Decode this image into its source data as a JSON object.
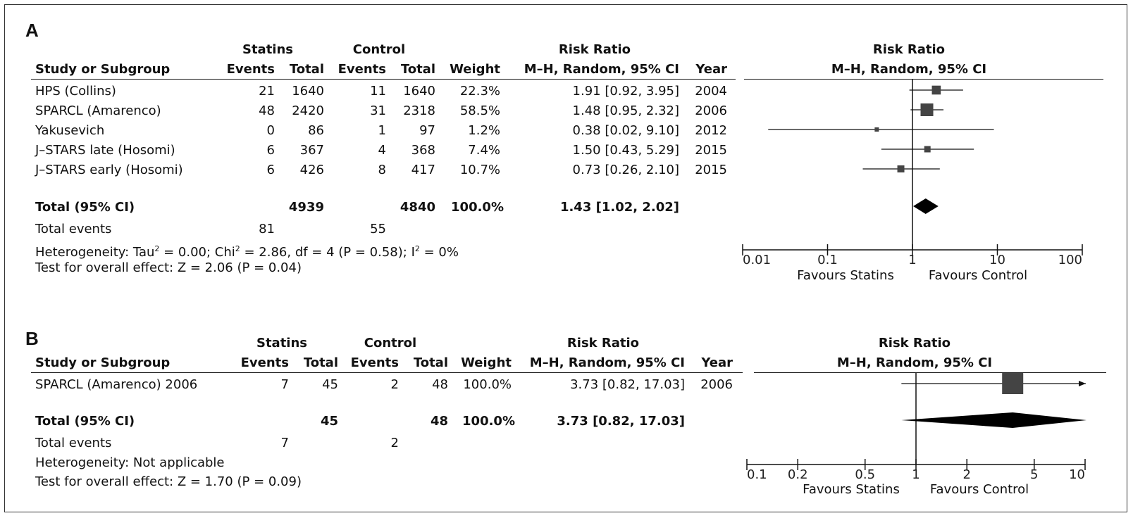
{
  "panels": [
    {
      "letter": "A",
      "head": {
        "group1": "Statins",
        "group2": "Control",
        "rr": "Risk Ratio",
        "plot_title": "Risk Ratio",
        "study": "Study or Subgroup",
        "events": "Events",
        "total": "Total",
        "weight": "Weight",
        "method": "M–H, Random, 95% CI",
        "year": "Year",
        "plot_method": "M–H, Random, 95% CI"
      },
      "rows": [
        {
          "study": "HPS (Collins)",
          "e1": "21",
          "t1": "1640",
          "e2": "11",
          "t2": "1640",
          "weight": "22.3%",
          "ci": "1.91 [0.92, 3.95]",
          "year": "2004"
        },
        {
          "study": "SPARCL (Amarenco)",
          "e1": "48",
          "t1": "2420",
          "e2": "31",
          "t2": "2318",
          "weight": "58.5%",
          "ci": "1.48 [0.95, 2.32]",
          "year": "2006"
        },
        {
          "study": "Yakusevich",
          "e1": "0",
          "t1": "86",
          "e2": "1",
          "t2": "97",
          "weight": "1.2%",
          "ci": "0.38 [0.02, 9.10]",
          "year": "2012"
        },
        {
          "study": "J–STARS late (Hosomi)",
          "e1": "6",
          "t1": "367",
          "e2": "4",
          "t2": "368",
          "weight": "7.4%",
          "ci": "1.50 [0.43, 5.29]",
          "year": "2015"
        },
        {
          "study": "J–STARS early (Hosomi)",
          "e1": "6",
          "t1": "426",
          "e2": "8",
          "t2": "417",
          "weight": "10.7%",
          "ci": "0.73 [0.26, 2.10]",
          "year": "2015"
        }
      ],
      "total": {
        "label": "Total (95% CI)",
        "t1": "4939",
        "t2": "4840",
        "weight": "100.0%",
        "ci": "1.43 [1.02, 2.02]"
      },
      "events": {
        "label": "Total events",
        "e1": "81",
        "e2": "55"
      },
      "heterogeneity_a": "Heterogeneity: Tau",
      "heterogeneity_b": " = 0.00; Chi",
      "heterogeneity_c": " = 2.86, df = 4 (P = 0.58); I",
      "heterogeneity_d": " = 0%",
      "sup": "2",
      "overall": "Test for overall effect: Z = 2.06 (P = 0.04)",
      "axis_ticks": [
        "0.01",
        "0.1",
        "1",
        "10",
        "100"
      ],
      "favours_left": "Favours Statins",
      "favours_right": "Favours Control"
    },
    {
      "letter": "B",
      "head": {
        "group1": "Statins",
        "group2": "Control",
        "rr": "Risk Ratio",
        "plot_title": "Risk Ratio",
        "study": "Study or Subgroup",
        "events": "Events",
        "total": "Total",
        "weight": "Weight",
        "method": "M–H, Random, 95% CI",
        "year": "Year",
        "plot_method": "M–H, Random, 95% CI"
      },
      "rows": [
        {
          "study": "SPARCL (Amarenco) 2006",
          "e1": "7",
          "t1": "45",
          "e2": "2",
          "t2": "48",
          "weight": "100.0%",
          "ci": "3.73 [0.82, 17.03]",
          "year": "2006"
        }
      ],
      "total": {
        "label": "Total (95% CI)",
        "t1": "45",
        "t2": "48",
        "weight": "100.0%",
        "ci": "3.73 [0.82, 17.03]"
      },
      "events": {
        "label": "Total events",
        "e1": "7",
        "e2": "2"
      },
      "heterogeneity": "Heterogeneity: Not applicable",
      "overall": "Test for overall effect: Z = 1.70 (P = 0.09)",
      "axis_ticks": [
        "0.1",
        "0.2",
        "0.5",
        "1",
        "2",
        "5",
        "10"
      ],
      "favours_left": "Favours Statins",
      "favours_right": "Favours Control"
    }
  ],
  "chart_data": [
    {
      "type": "forest",
      "x_scale": "log",
      "xlim": [
        0.01,
        100
      ],
      "studies": [
        {
          "name": "HPS (Collins)",
          "rr": 1.91,
          "lo": 0.92,
          "hi": 3.95,
          "weight": 22.3
        },
        {
          "name": "SPARCL (Amarenco)",
          "rr": 1.48,
          "lo": 0.95,
          "hi": 2.32,
          "weight": 58.5
        },
        {
          "name": "Yakusevich",
          "rr": 0.38,
          "lo": 0.02,
          "hi": 9.1,
          "weight": 1.2
        },
        {
          "name": "J–STARS late (Hosomi)",
          "rr": 1.5,
          "lo": 0.43,
          "hi": 5.29,
          "weight": 7.4
        },
        {
          "name": "J–STARS early (Hosomi)",
          "rr": 0.73,
          "lo": 0.26,
          "hi": 2.1,
          "weight": 10.7
        }
      ],
      "pooled": {
        "rr": 1.43,
        "lo": 1.02,
        "hi": 2.02
      }
    },
    {
      "type": "forest",
      "x_scale": "log",
      "xlim": [
        0.1,
        10
      ],
      "studies": [
        {
          "name": "SPARCL (Amarenco) 2006",
          "rr": 3.73,
          "lo": 0.82,
          "hi": 17.03,
          "weight": 100.0
        }
      ],
      "pooled": {
        "rr": 3.73,
        "lo": 0.82,
        "hi": 17.03
      }
    }
  ]
}
